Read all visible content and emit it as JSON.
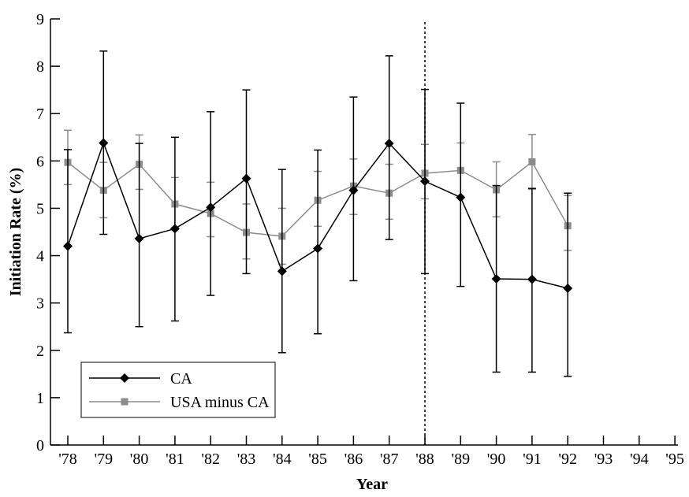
{
  "chart_data": {
    "type": "line",
    "title": "",
    "xlabel": "Year",
    "ylabel": "Initiation Rate (%)",
    "x": [
      "'78",
      "'79",
      "'80",
      "'81",
      "'82",
      "'83",
      "'84",
      "'85",
      "'86",
      "'87",
      "'88",
      "'89",
      "'90",
      "'91",
      "'92",
      "'93",
      "'94",
      "'95"
    ],
    "xlim": [
      1978,
      1995
    ],
    "ylim": [
      0,
      9
    ],
    "y_ticks": [
      "0",
      "1",
      "2",
      "3",
      "4",
      "5",
      "6",
      "7",
      "8",
      "9"
    ],
    "grid": false,
    "legend_position": "bottom-left",
    "reference_line": {
      "x": "'88",
      "style": "dotted"
    },
    "series": [
      {
        "name": "CA",
        "color": "#000000",
        "marker": "diamond",
        "x": [
          "'78",
          "'79",
          "'80",
          "'81",
          "'82",
          "'83",
          "'84",
          "'85",
          "'86",
          "'87",
          "'88",
          "'89",
          "'90",
          "'91",
          "'92"
        ],
        "values": [
          4.2,
          6.38,
          4.36,
          4.57,
          5.02,
          5.63,
          3.67,
          4.15,
          5.38,
          6.37,
          5.57,
          5.23,
          3.51,
          3.5,
          3.31
        ],
        "err_low": [
          2.37,
          4.45,
          2.5,
          2.62,
          3.16,
          3.62,
          1.95,
          2.35,
          3.47,
          4.34,
          3.62,
          3.35,
          1.54,
          1.54,
          1.45
        ],
        "err_high": [
          6.24,
          8.32,
          6.37,
          6.5,
          7.04,
          7.5,
          5.82,
          6.23,
          7.35,
          8.22,
          7.51,
          7.22,
          5.48,
          5.42,
          5.32
        ]
      },
      {
        "name": "USA minus CA",
        "color": "#8c8c8c",
        "marker": "square",
        "x": [
          "'78",
          "'79",
          "'80",
          "'81",
          "'82",
          "'83",
          "'84",
          "'85",
          "'86",
          "'87",
          "'88",
          "'89",
          "'90",
          "'91",
          "'92"
        ],
        "values": [
          5.97,
          5.38,
          5.93,
          5.09,
          4.89,
          4.49,
          4.41,
          5.17,
          5.47,
          5.32,
          5.74,
          5.8,
          5.39,
          5.98,
          4.63
        ],
        "err_low": [
          5.5,
          4.8,
          5.4,
          4.55,
          4.4,
          3.93,
          3.82,
          4.62,
          4.87,
          4.77,
          5.2,
          5.22,
          4.82,
          5.4,
          4.11
        ],
        "err_high": [
          6.65,
          5.97,
          6.55,
          5.65,
          5.55,
          5.09,
          5.0,
          5.78,
          6.04,
          5.93,
          6.35,
          6.38,
          5.98,
          6.56,
          5.27
        ]
      }
    ]
  }
}
